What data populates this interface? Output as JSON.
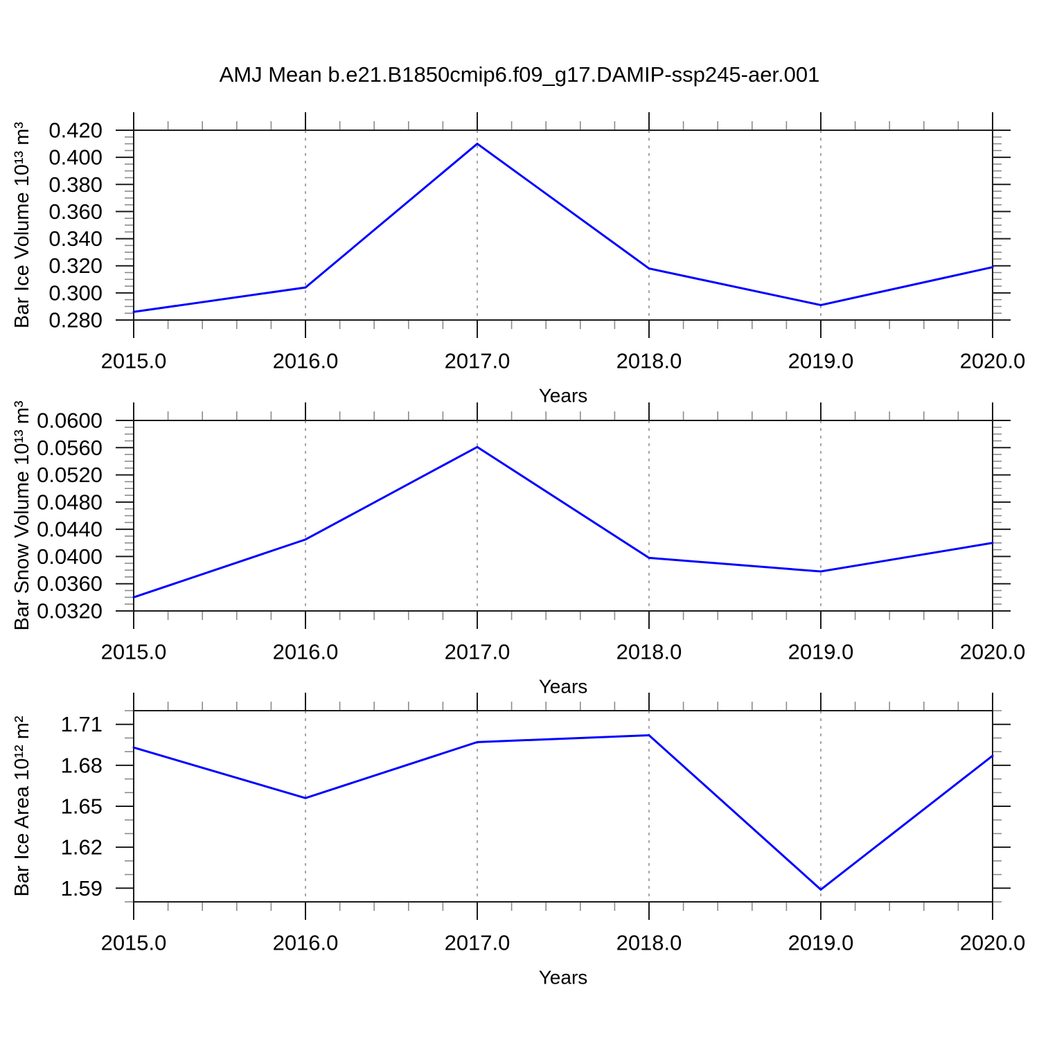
{
  "title": "AMJ Mean b.e21.B1850cmip6.f09_g17.DAMIP-ssp245-aer.001",
  "colors": {
    "line": "#0000FF",
    "dashed_guide": "#888888",
    "frame": "#1a1a1a",
    "major_tick": "#1a1a1a",
    "minor_tick": "#8a8a8a",
    "text": "#000000",
    "background": "#FFFFFF"
  },
  "chart_data": [
    {
      "type": "line",
      "panel": "top",
      "ylabel": "Bar Ice Volume 10¹³ m³",
      "xlabel": "Years",
      "x": [
        2015,
        2016,
        2017,
        2018,
        2019,
        2020
      ],
      "values": [
        0.286,
        0.304,
        0.41,
        0.318,
        0.291,
        0.319
      ],
      "xlim": [
        2015,
        2020
      ],
      "ylim": [
        0.28,
        0.42
      ],
      "x_ticks": {
        "values": [
          2015,
          2016,
          2017,
          2018,
          2019,
          2020
        ],
        "labels": [
          "2015.0",
          "2016.0",
          "2017.0",
          "2018.0",
          "2019.0",
          "2020.0"
        ],
        "minor_step": 0.2
      },
      "y_ticks": {
        "values": [
          0.28,
          0.3,
          0.32,
          0.34,
          0.36,
          0.38,
          0.4,
          0.42
        ],
        "labels": [
          "0.280",
          "0.300",
          "0.320",
          "0.340",
          "0.360",
          "0.380",
          "0.400",
          "0.420"
        ],
        "minor_step": 0.005
      },
      "guide_years": [
        2016,
        2017,
        2018,
        2019
      ],
      "grid": "vertical-dashed-only",
      "legend": "none"
    },
    {
      "type": "line",
      "panel": "middle",
      "ylabel": "Bar Snow Volume 10¹³ m³",
      "xlabel": "Years",
      "x": [
        2015,
        2016,
        2017,
        2018,
        2019,
        2020
      ],
      "values": [
        0.034,
        0.0425,
        0.0561,
        0.0398,
        0.0378,
        0.042
      ],
      "xlim": [
        2015,
        2020
      ],
      "ylim": [
        0.032,
        0.06
      ],
      "x_ticks": {
        "values": [
          2015,
          2016,
          2017,
          2018,
          2019,
          2020
        ],
        "labels": [
          "2015.0",
          "2016.0",
          "2017.0",
          "2018.0",
          "2019.0",
          "2020.0"
        ],
        "minor_step": 0.2
      },
      "y_ticks": {
        "values": [
          0.032,
          0.036,
          0.04,
          0.044,
          0.048,
          0.052,
          0.056,
          0.06
        ],
        "labels": [
          "0.0320",
          "0.0360",
          "0.0400",
          "0.0440",
          "0.0480",
          "0.0520",
          "0.0560",
          "0.0600"
        ],
        "minor_step": 0.001
      },
      "guide_years": [
        2016,
        2017,
        2018,
        2019
      ],
      "grid": "vertical-dashed-only",
      "legend": "none"
    },
    {
      "type": "line",
      "panel": "bottom",
      "ylabel": "Bar Ice Area 10¹² m²",
      "xlabel": "Years",
      "x": [
        2015,
        2016,
        2017,
        2018,
        2019,
        2020
      ],
      "values": [
        1.693,
        1.656,
        1.697,
        1.702,
        1.589,
        1.687
      ],
      "xlim": [
        2015,
        2020
      ],
      "ylim": [
        1.58,
        1.72
      ],
      "x_ticks": {
        "values": [
          2015,
          2016,
          2017,
          2018,
          2019,
          2020
        ],
        "labels": [
          "2015.0",
          "2016.0",
          "2017.0",
          "2018.0",
          "2019.0",
          "2020.0"
        ],
        "minor_step": 0.2
      },
      "y_ticks": {
        "values": [
          1.59,
          1.62,
          1.65,
          1.68,
          1.71
        ],
        "labels": [
          "1.59",
          "1.62",
          "1.65",
          "1.68",
          "1.71"
        ],
        "minor_step": 0.01
      },
      "guide_years": [
        2016,
        2017,
        2018,
        2019
      ],
      "grid": "vertical-dashed-only",
      "legend": "none"
    }
  ]
}
